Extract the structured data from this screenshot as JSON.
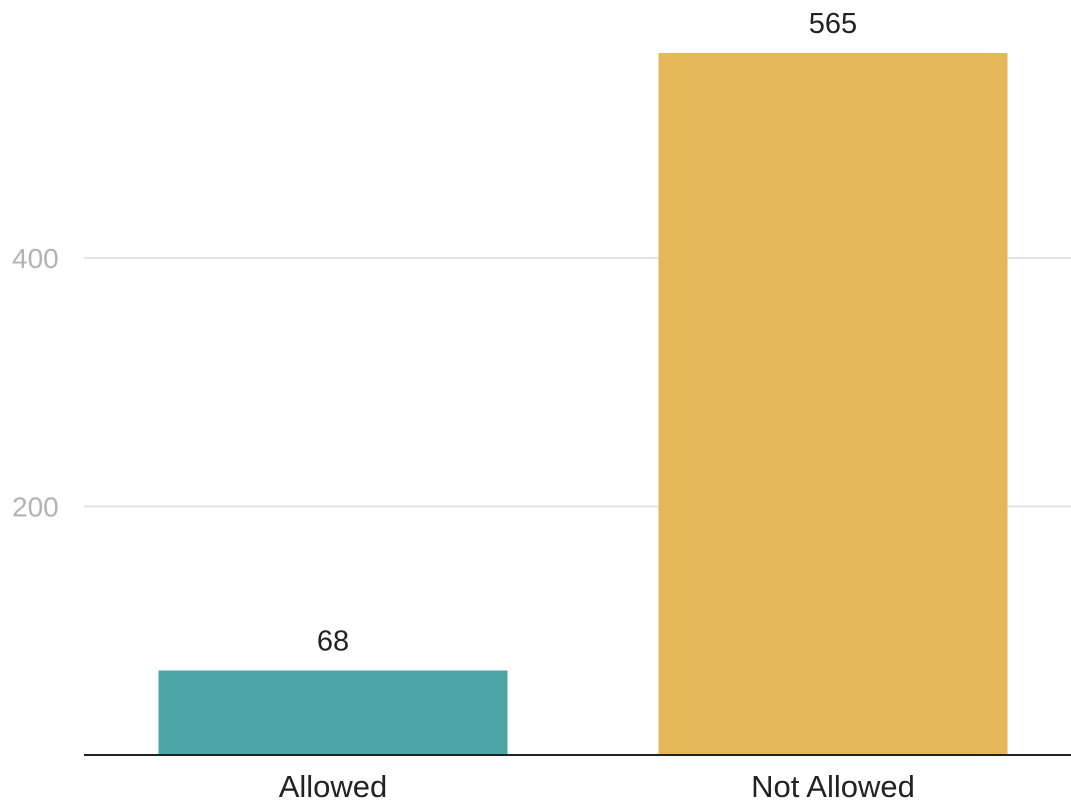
{
  "chart_data": {
    "type": "bar",
    "title": "",
    "xlabel": "",
    "ylabel": "",
    "categories": [
      "Allowed",
      "Not Allowed"
    ],
    "values": [
      68,
      565
    ],
    "value_labels": [
      "68",
      "565"
    ],
    "ylim": [
      0,
      600
    ],
    "y_ticks": [
      200,
      400
    ],
    "y_tick_labels": [
      "200",
      "400"
    ],
    "grid": true,
    "legend": "none",
    "colors": [
      "#4da5a8",
      "#e4b858"
    ]
  }
}
